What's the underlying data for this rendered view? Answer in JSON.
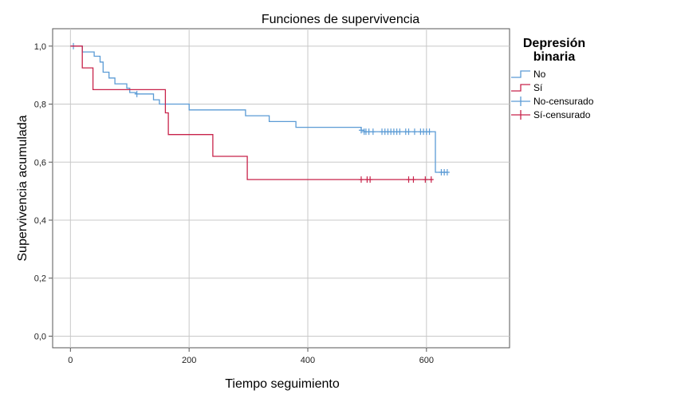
{
  "chart_data": {
    "type": "line",
    "title": "Funciones de supervivencia",
    "xlabel": "Tiempo seguimiento",
    "ylabel": "Supervivencia acumulada",
    "xlim": [
      -30,
      740
    ],
    "ylim": [
      -0.04,
      1.06
    ],
    "x_ticks": [
      0,
      200,
      400,
      600
    ],
    "x_tick_labels": [
      "0",
      "200",
      "400",
      "600"
    ],
    "y_ticks": [
      0.0,
      0.2,
      0.4,
      0.6,
      0.8,
      1.0
    ],
    "y_tick_labels": [
      "0,0",
      "0,2",
      "0,4",
      "0,6",
      "0,8",
      "1,0"
    ],
    "grid": true,
    "legend": {
      "title_line1": "Depresión",
      "title_line2": "binaria",
      "placement": "right",
      "items": [
        {
          "label": "No",
          "kind": "step",
          "series": "No"
        },
        {
          "label": "Sí",
          "kind": "step",
          "series": "Sí"
        },
        {
          "label": "No-censurado",
          "kind": "censor",
          "series": "No"
        },
        {
          "label": "Sí-censurado",
          "kind": "censor",
          "series": "Sí"
        }
      ]
    },
    "series": [
      {
        "name": "No",
        "color": "#5b9bd5",
        "steps": [
          [
            0,
            1.0
          ],
          [
            20,
            0.98
          ],
          [
            40,
            0.965
          ],
          [
            50,
            0.945
          ],
          [
            55,
            0.91
          ],
          [
            65,
            0.89
          ],
          [
            75,
            0.87
          ],
          [
            95,
            0.855
          ],
          [
            100,
            0.84
          ],
          [
            110,
            0.835
          ],
          [
            140,
            0.815
          ],
          [
            150,
            0.8
          ],
          [
            200,
            0.78
          ],
          [
            295,
            0.76
          ],
          [
            335,
            0.74
          ],
          [
            380,
            0.72
          ],
          [
            490,
            0.71
          ],
          [
            495,
            0.705
          ],
          [
            615,
            0.565
          ],
          [
            635,
            0.565
          ]
        ],
        "censored": [
          [
            5,
            1.0
          ],
          [
            112,
            0.835
          ],
          [
            490,
            0.71
          ],
          [
            495,
            0.705
          ],
          [
            498,
            0.705
          ],
          [
            503,
            0.705
          ],
          [
            510,
            0.705
          ],
          [
            525,
            0.705
          ],
          [
            530,
            0.705
          ],
          [
            535,
            0.705
          ],
          [
            540,
            0.705
          ],
          [
            545,
            0.705
          ],
          [
            550,
            0.705
          ],
          [
            555,
            0.705
          ],
          [
            565,
            0.705
          ],
          [
            570,
            0.705
          ],
          [
            580,
            0.705
          ],
          [
            590,
            0.705
          ],
          [
            595,
            0.705
          ],
          [
            600,
            0.705
          ],
          [
            605,
            0.705
          ],
          [
            625,
            0.565
          ],
          [
            630,
            0.565
          ],
          [
            635,
            0.565
          ]
        ]
      },
      {
        "name": "Sí",
        "color": "#c8234a",
        "steps": [
          [
            0,
            1.0
          ],
          [
            20,
            0.925
          ],
          [
            38,
            0.85
          ],
          [
            160,
            0.77
          ],
          [
            165,
            0.695
          ],
          [
            240,
            0.62
          ],
          [
            298,
            0.54
          ],
          [
            610,
            0.54
          ]
        ],
        "censored": [
          [
            490,
            0.54
          ],
          [
            500,
            0.54
          ],
          [
            505,
            0.54
          ],
          [
            570,
            0.54
          ],
          [
            578,
            0.54
          ],
          [
            598,
            0.54
          ],
          [
            608,
            0.54
          ]
        ]
      }
    ]
  }
}
